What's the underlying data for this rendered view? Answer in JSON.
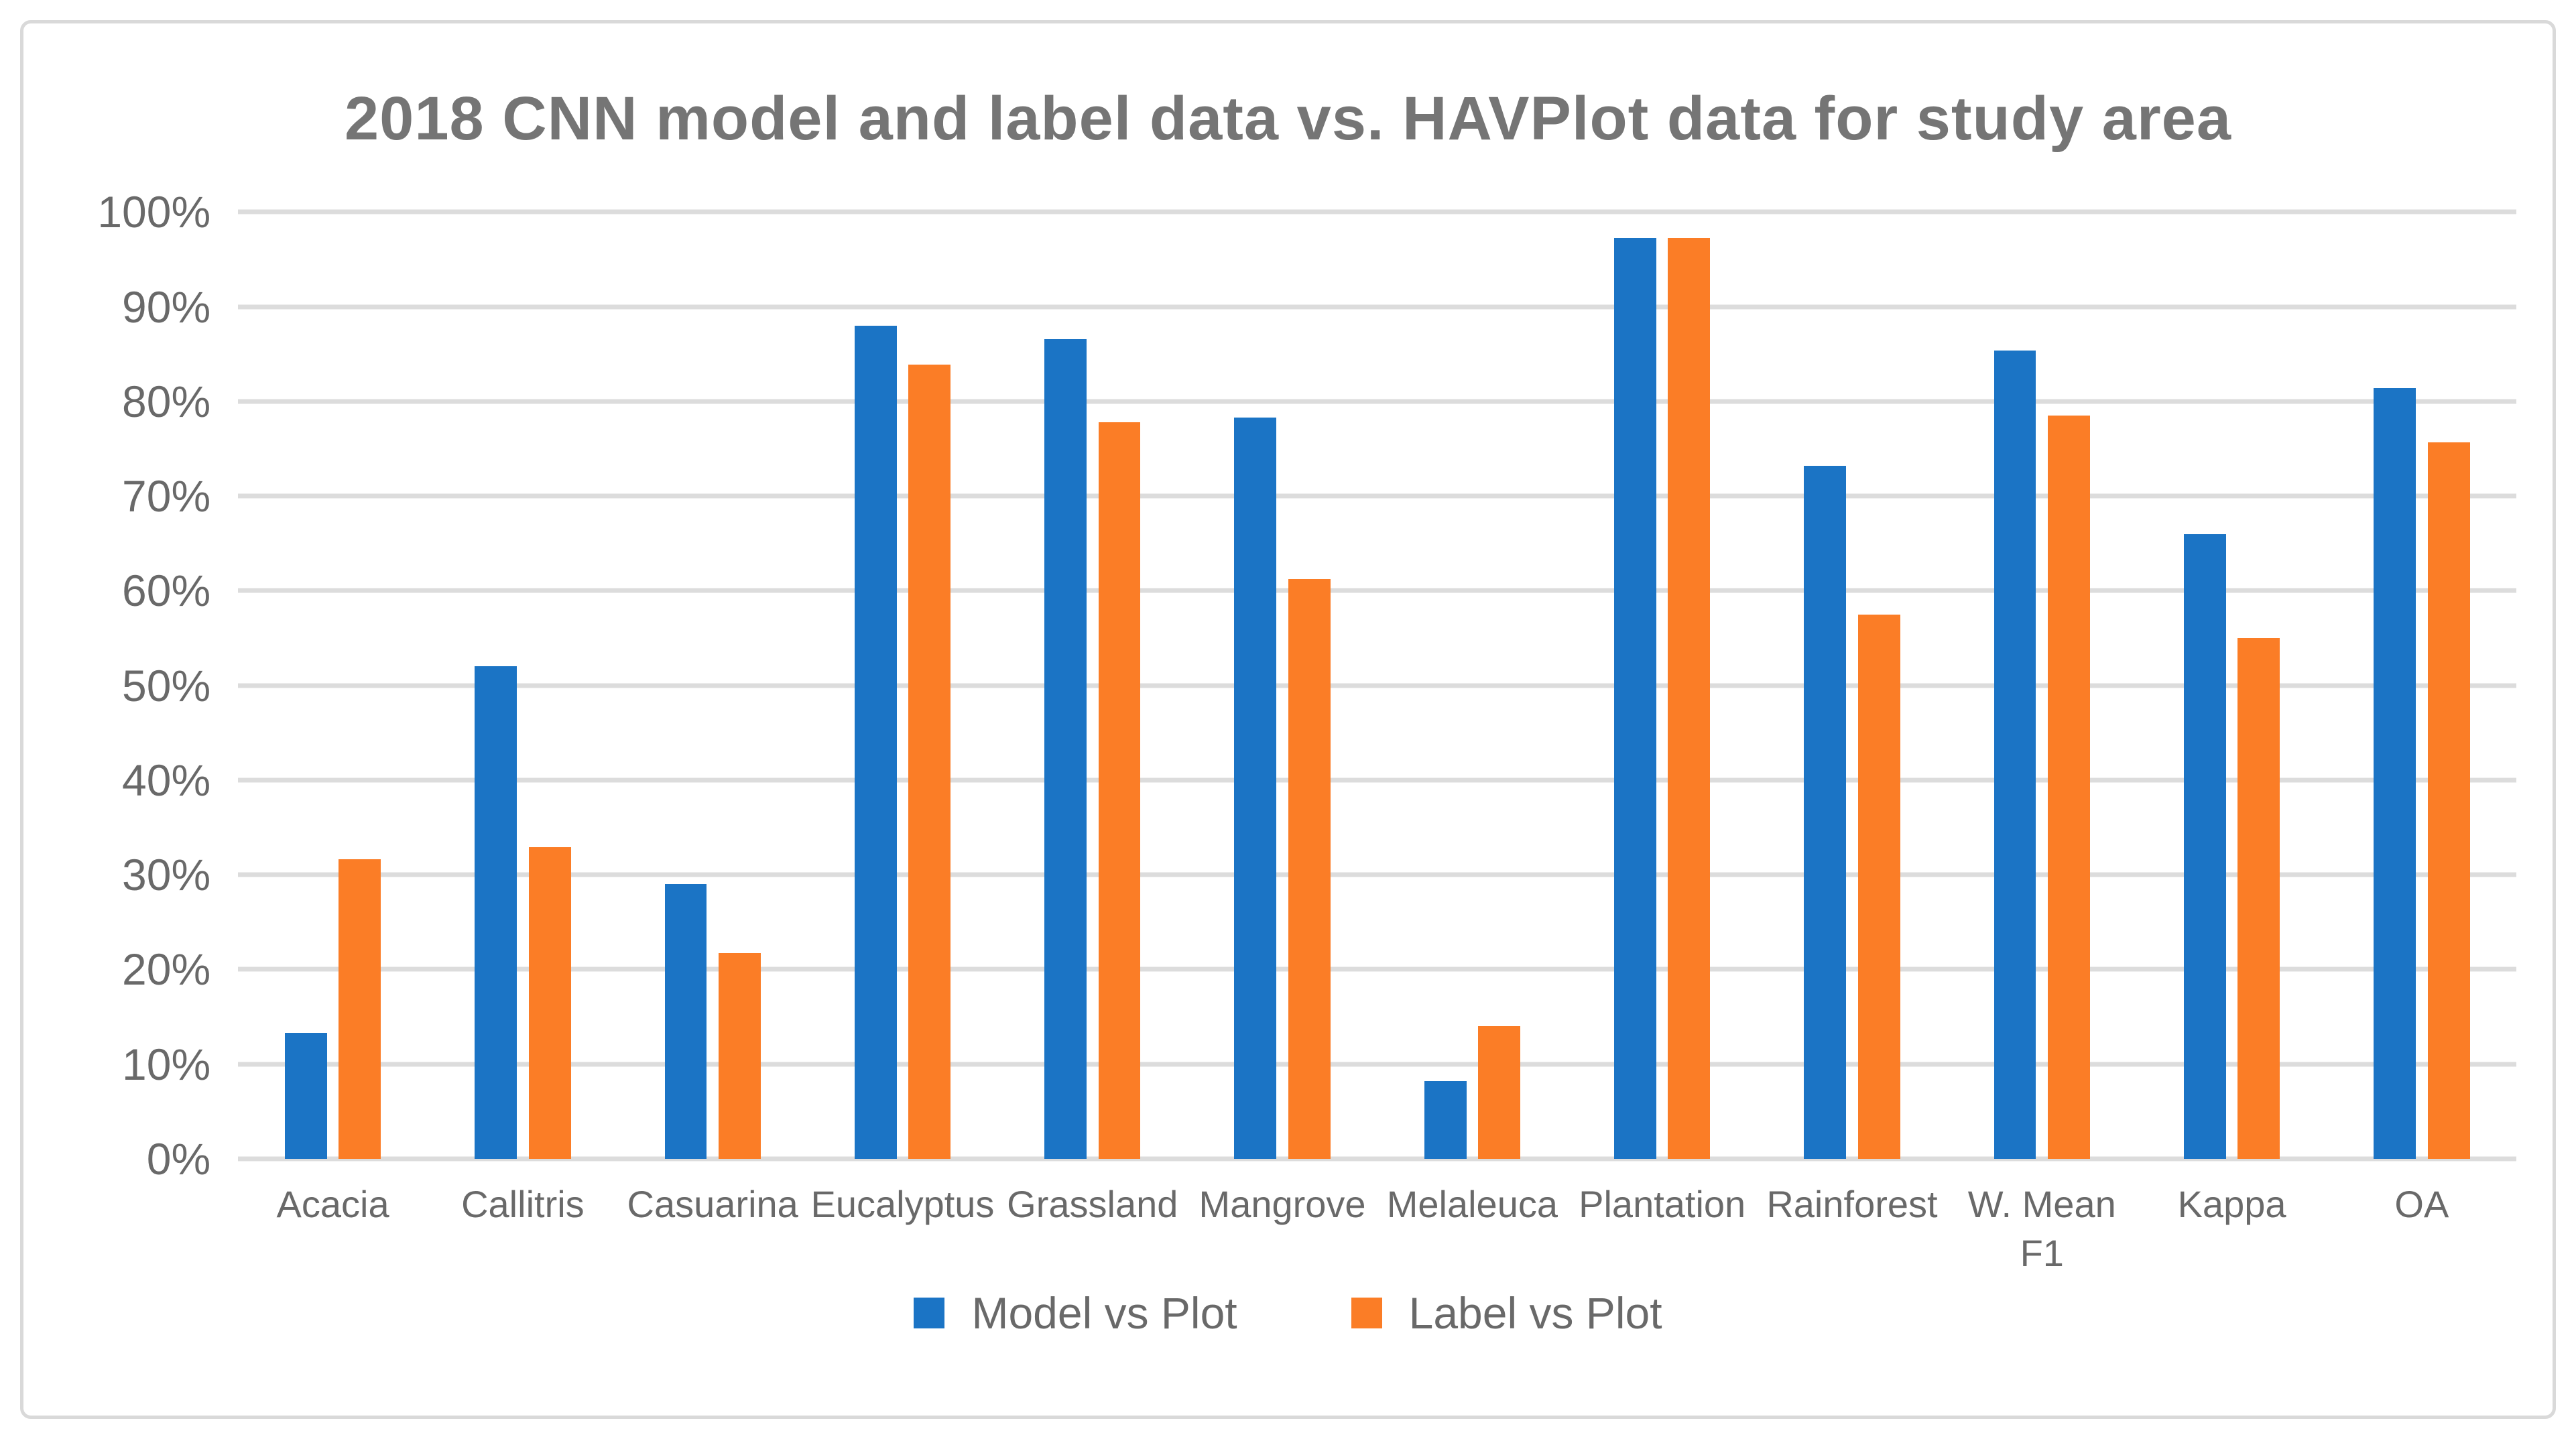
{
  "chart_data": {
    "type": "bar",
    "title": "2018 CNN model and label data vs. HAVPlot data for study area",
    "categories": [
      "Acacia",
      "Callitris",
      "Casuarina",
      "Eucalyptus",
      "Grassland",
      "Mangrove",
      "Melaleuca",
      "Plantation",
      "Rainforest",
      "W. Mean\nF1",
      "Kappa",
      "OA"
    ],
    "series": [
      {
        "name": "Model vs Plot",
        "color": "#1b74c5",
        "values": [
          13.3,
          52.0,
          29.0,
          88.0,
          86.6,
          78.3,
          8.2,
          97.3,
          73.2,
          85.4,
          66.0,
          81.4
        ]
      },
      {
        "name": "Label vs Plot",
        "color": "#fb7d26",
        "values": [
          31.6,
          32.9,
          21.7,
          83.9,
          77.8,
          61.2,
          14.0,
          97.3,
          57.5,
          78.5,
          55.0,
          75.7
        ]
      }
    ],
    "xlabel": "",
    "ylabel": "",
    "ylim": [
      0,
      100
    ],
    "yticks": [
      "0%",
      "10%",
      "20%",
      "30%",
      "40%",
      "50%",
      "60%",
      "70%",
      "80%",
      "90%",
      "100%"
    ],
    "grid": true,
    "gridline_color": "#dcdcdc",
    "legend_position": "bottom",
    "title_color": "#757575",
    "axis_text_color": "#696969",
    "border_color": "#d9d9d9",
    "background_color": "#ffffff"
  }
}
